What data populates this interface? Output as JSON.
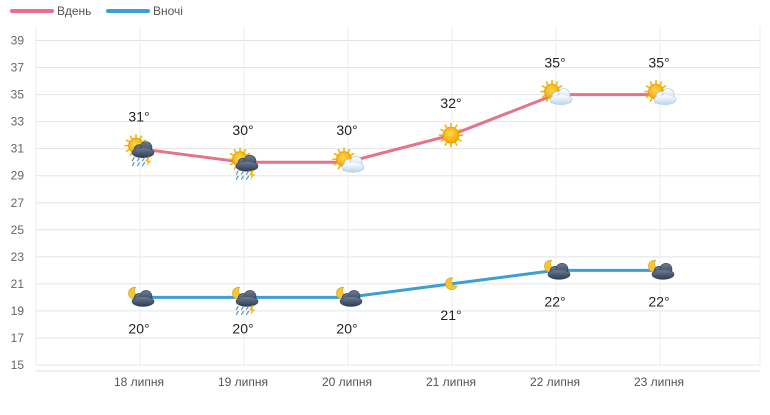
{
  "chart_data": {
    "type": "line",
    "title": "",
    "xlabel": "",
    "ylabel": "",
    "categories": [
      "18 липня",
      "19 липня",
      "20 липня",
      "21 липня",
      "22 липня",
      "23 липня"
    ],
    "ylim": [
      15,
      40
    ],
    "yticks": [
      15,
      17,
      19,
      21,
      23,
      25,
      27,
      29,
      31,
      33,
      35,
      37,
      39
    ],
    "grid": true,
    "legend_position": "top-left",
    "series": [
      {
        "name": "Вдень",
        "color": "#e5728a",
        "values": [
          31,
          30,
          30,
          32,
          35,
          35
        ],
        "labels": [
          "31°",
          "30°",
          "30°",
          "32°",
          "35°",
          "35°"
        ],
        "icons": [
          "sun-cloud-rain-thunder-icon",
          "sun-cloud-rain-thunder-icon",
          "sun-cloud-icon",
          "sun-icon",
          "sun-cloud-icon",
          "sun-cloud-icon"
        ]
      },
      {
        "name": "Вночі",
        "color": "#3a9fd6",
        "values": [
          20,
          20,
          20,
          21,
          22,
          22
        ],
        "labels": [
          "20°",
          "20°",
          "20°",
          "21°",
          "22°",
          "22°"
        ],
        "icons": [
          "moon-cloud-icon",
          "moon-cloud-rain-thunder-icon",
          "moon-cloud-icon",
          "moon-icon",
          "moon-cloud-icon",
          "moon-cloud-icon"
        ]
      }
    ]
  }
}
